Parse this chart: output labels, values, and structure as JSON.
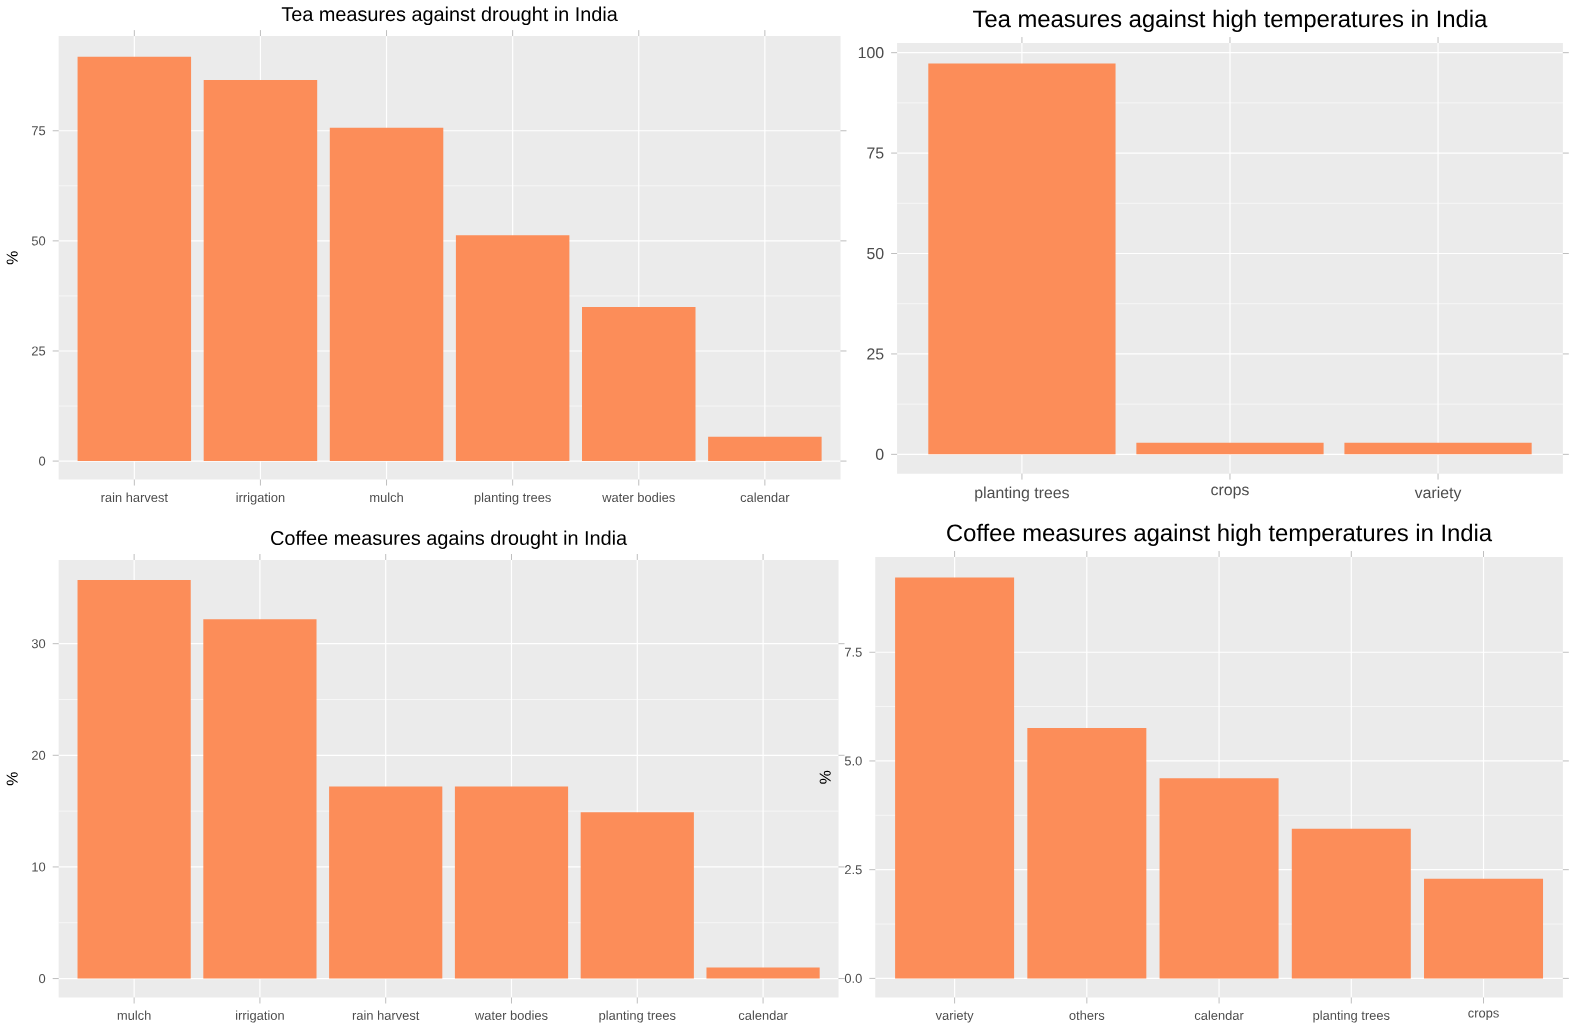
{
  "chart_data": [
    {
      "type": "bar",
      "title": "Tea measures against drought in India",
      "ylabel": "%",
      "categories": [
        "rain harvest",
        "irrigation",
        "mulch",
        "planting trees",
        "water bodies",
        "calendar"
      ],
      "values": [
        91.8,
        86.5,
        75.7,
        51.3,
        35.0,
        5.5
      ],
      "color": "#fc8d59",
      "ylim": [
        -4.2,
        96.5
      ],
      "yticks": [
        0,
        25,
        50,
        75
      ],
      "grid": true
    },
    {
      "type": "bar",
      "title": "Tea measures against high temperatures in India",
      "categories": [
        "planting trees",
        "crops",
        "variety"
      ],
      "values": [
        97.3,
        2.9,
        2.9
      ],
      "color": "#fc8d59",
      "ylim": [
        -4.8,
        102.4
      ],
      "yticks": [
        0,
        25,
        50,
        75,
        100
      ],
      "grid": true
    },
    {
      "type": "bar",
      "title": "Coffee measures agains drought in India",
      "ylabel": "%",
      "categories": [
        "mulch",
        "irrigation",
        "rain harvest",
        "water bodies",
        "planting trees",
        "calendar"
      ],
      "values": [
        35.7,
        32.2,
        17.2,
        17.2,
        14.9,
        1.0
      ],
      "color": "#fc8d59",
      "ylim": [
        -1.7,
        37.5
      ],
      "yticks": [
        0,
        10,
        20,
        30
      ],
      "grid": true
    },
    {
      "type": "bar",
      "title": "Coffee measures against high temperatures in India",
      "ylabel": "%",
      "categories": [
        "variety",
        "others",
        "calendar",
        "planting trees",
        "crops"
      ],
      "values": [
        9.22,
        5.76,
        4.6,
        3.44,
        2.29
      ],
      "color": "#fc8d59",
      "ylim": [
        -0.44,
        9.69
      ],
      "yticks": [
        {
          "value": 0,
          "label": "0.0"
        },
        {
          "value": 2.5,
          "label": "2.5"
        },
        {
          "value": 5,
          "label": "5.0"
        },
        {
          "value": 7.5,
          "label": "7.5"
        }
      ],
      "grid": true
    }
  ]
}
